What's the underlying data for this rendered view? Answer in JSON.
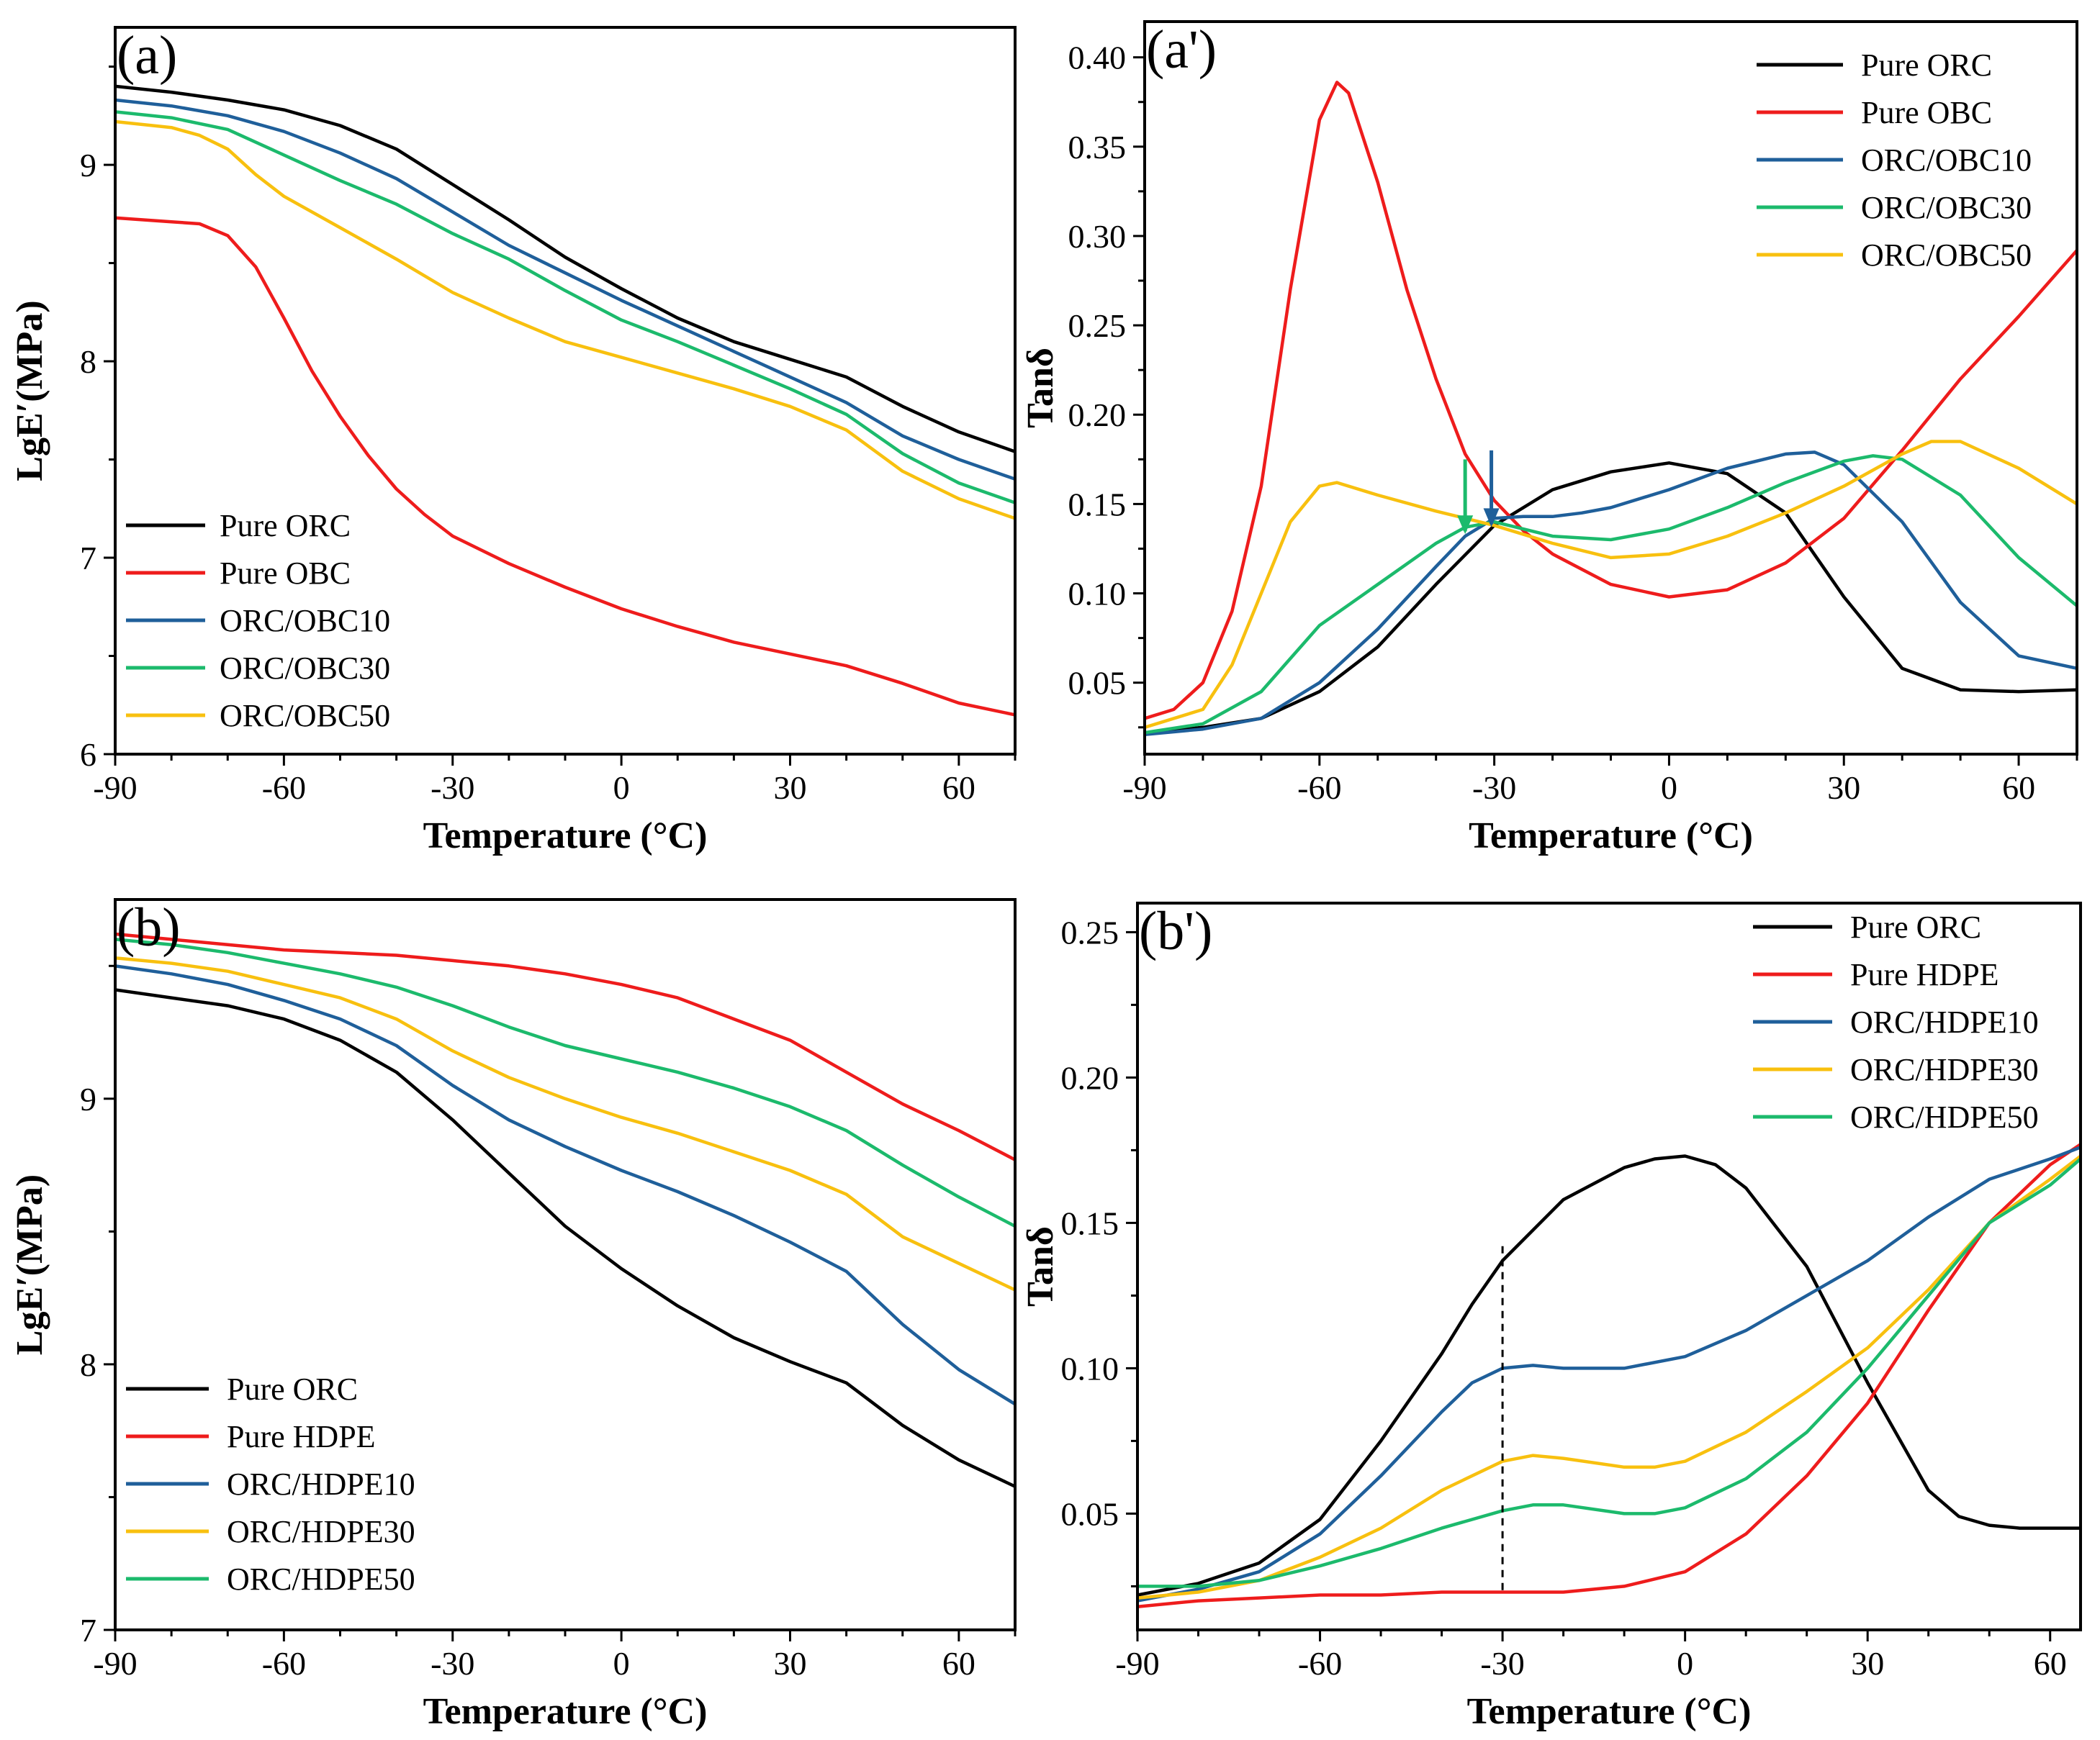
{
  "figure": {
    "colors": {
      "black": "#000000",
      "red": "#ee1c1c",
      "blue": "#1f5f9a",
      "green": "#1cba6c",
      "yellow": "#f8c00f"
    }
  },
  "chart_data": [
    {
      "type": "line",
      "panel": "(a)",
      "xlabel": "Temperature (°C)",
      "ylabel": "LgE′(MPa)",
      "xlim": [
        -90,
        70
      ],
      "ylim": [
        6,
        9.7
      ],
      "xticks": [
        -90,
        -60,
        -30,
        0,
        30,
        60
      ],
      "yticks": [
        6,
        7,
        8,
        9
      ],
      "legend_position": "bottom-left",
      "series": [
        {
          "name": "Pure ORC",
          "color": "#000000",
          "x": [
            -90,
            -80,
            -70,
            -60,
            -50,
            -40,
            -30,
            -20,
            -10,
            0,
            10,
            20,
            30,
            40,
            50,
            60,
            70
          ],
          "y": [
            9.4,
            9.37,
            9.33,
            9.28,
            9.2,
            9.08,
            8.9,
            8.72,
            8.53,
            8.37,
            8.22,
            8.1,
            8.01,
            7.92,
            7.77,
            7.64,
            7.54
          ]
        },
        {
          "name": "Pure OBC",
          "color": "#ee1c1c",
          "x": [
            -90,
            -80,
            -75,
            -70,
            -65,
            -60,
            -55,
            -50,
            -45,
            -40,
            -35,
            -30,
            -20,
            -10,
            0,
            10,
            20,
            30,
            40,
            50,
            60,
            70
          ],
          "y": [
            8.73,
            8.71,
            8.7,
            8.64,
            8.48,
            8.22,
            7.95,
            7.72,
            7.52,
            7.35,
            7.22,
            7.11,
            6.97,
            6.85,
            6.74,
            6.65,
            6.57,
            6.51,
            6.45,
            6.36,
            6.26,
            6.2
          ]
        },
        {
          "name": "ORC/OBC10",
          "color": "#1f5f9a",
          "x": [
            -90,
            -80,
            -70,
            -60,
            -50,
            -40,
            -30,
            -20,
            -10,
            0,
            10,
            20,
            30,
            40,
            50,
            60,
            70
          ],
          "y": [
            9.33,
            9.3,
            9.25,
            9.17,
            9.06,
            8.93,
            8.76,
            8.59,
            8.45,
            8.31,
            8.18,
            8.05,
            7.92,
            7.79,
            7.62,
            7.5,
            7.4
          ]
        },
        {
          "name": "ORC/OBC30",
          "color": "#1cba6c",
          "x": [
            -90,
            -80,
            -70,
            -60,
            -50,
            -40,
            -30,
            -20,
            -10,
            0,
            10,
            20,
            30,
            40,
            50,
            60,
            70
          ],
          "y": [
            9.27,
            9.24,
            9.18,
            9.05,
            8.92,
            8.8,
            8.65,
            8.52,
            8.36,
            8.21,
            8.1,
            7.98,
            7.86,
            7.73,
            7.53,
            7.38,
            7.28
          ]
        },
        {
          "name": "ORC/OBC50",
          "color": "#f8c00f",
          "x": [
            -90,
            -80,
            -75,
            -70,
            -65,
            -60,
            -50,
            -40,
            -30,
            -20,
            -10,
            0,
            10,
            20,
            30,
            40,
            50,
            60,
            70
          ],
          "y": [
            9.22,
            9.19,
            9.15,
            9.08,
            8.95,
            8.84,
            8.68,
            8.52,
            8.35,
            8.22,
            8.1,
            8.02,
            7.94,
            7.86,
            7.77,
            7.65,
            7.44,
            7.3,
            7.2
          ]
        }
      ]
    },
    {
      "type": "line",
      "panel": "(a')",
      "xlabel": "Temperature (°C)",
      "ylabel": "Tanδ",
      "xlim": [
        -90,
        70
      ],
      "ylim": [
        0.01,
        0.42
      ],
      "xticks": [
        -90,
        -60,
        -30,
        0,
        30,
        60
      ],
      "yticks": [
        0.05,
        0.1,
        0.15,
        0.2,
        0.25,
        0.3,
        0.35,
        0.4
      ],
      "ytick_labels": [
        "0.05",
        "0.10",
        "0.15",
        "0.20",
        "0.25",
        "0.30",
        "0.35",
        "0.40"
      ],
      "legend_position": "top-right",
      "annotations": [
        {
          "type": "arrow",
          "x": -35,
          "y_from": 0.175,
          "y_to": 0.142,
          "color": "#1cba6c"
        },
        {
          "type": "arrow",
          "x": -30.5,
          "y_from": 0.18,
          "y_to": 0.146,
          "color": "#1f5f9a"
        }
      ],
      "series": [
        {
          "name": "Pure ORC",
          "color": "#000000",
          "x": [
            -90,
            -80,
            -70,
            -60,
            -50,
            -40,
            -30,
            -20,
            -10,
            0,
            10,
            20,
            30,
            40,
            50,
            60,
            70
          ],
          "y": [
            0.022,
            0.025,
            0.03,
            0.045,
            0.07,
            0.105,
            0.138,
            0.158,
            0.168,
            0.173,
            0.167,
            0.145,
            0.098,
            0.058,
            0.046,
            0.045,
            0.046
          ]
        },
        {
          "name": "Pure OBC",
          "color": "#ee1c1c",
          "x": [
            -90,
            -85,
            -80,
            -75,
            -70,
            -65,
            -60,
            -57,
            -55,
            -50,
            -45,
            -40,
            -35,
            -30,
            -25,
            -20,
            -10,
            0,
            10,
            20,
            30,
            40,
            50,
            60,
            70
          ],
          "y": [
            0.03,
            0.035,
            0.05,
            0.09,
            0.16,
            0.27,
            0.365,
            0.386,
            0.38,
            0.33,
            0.27,
            0.22,
            0.178,
            0.152,
            0.135,
            0.122,
            0.105,
            0.098,
            0.102,
            0.117,
            0.142,
            0.18,
            0.22,
            0.255,
            0.292
          ]
        },
        {
          "name": "ORC/OBC10",
          "color": "#1f5f9a",
          "x": [
            -90,
            -80,
            -70,
            -60,
            -50,
            -40,
            -35,
            -30,
            -25,
            -20,
            -15,
            -10,
            0,
            10,
            20,
            25,
            30,
            40,
            50,
            60,
            70
          ],
          "y": [
            0.021,
            0.024,
            0.03,
            0.05,
            0.08,
            0.115,
            0.132,
            0.142,
            0.143,
            0.143,
            0.145,
            0.148,
            0.158,
            0.17,
            0.178,
            0.179,
            0.172,
            0.14,
            0.095,
            0.065,
            0.058
          ]
        },
        {
          "name": "ORC/OBC30",
          "color": "#1cba6c",
          "x": [
            -90,
            -80,
            -70,
            -60,
            -50,
            -40,
            -35,
            -30,
            -20,
            -10,
            0,
            10,
            20,
            30,
            35,
            40,
            50,
            60,
            70
          ],
          "y": [
            0.022,
            0.027,
            0.045,
            0.082,
            0.105,
            0.128,
            0.137,
            0.14,
            0.132,
            0.13,
            0.136,
            0.148,
            0.162,
            0.174,
            0.177,
            0.175,
            0.155,
            0.12,
            0.093
          ]
        },
        {
          "name": "ORC/OBC50",
          "color": "#f8c00f",
          "x": [
            -90,
            -80,
            -75,
            -70,
            -65,
            -60,
            -57,
            -50,
            -40,
            -30,
            -20,
            -10,
            0,
            10,
            20,
            30,
            40,
            45,
            50,
            60,
            70
          ],
          "y": [
            0.025,
            0.035,
            0.06,
            0.1,
            0.14,
            0.16,
            0.162,
            0.155,
            0.146,
            0.138,
            0.128,
            0.12,
            0.122,
            0.132,
            0.145,
            0.16,
            0.178,
            0.185,
            0.185,
            0.17,
            0.15
          ]
        }
      ]
    },
    {
      "type": "line",
      "panel": "(b)",
      "xlabel": "Temperature (°C)",
      "ylabel": "LgE′(MPa)",
      "xlim": [
        -90,
        70
      ],
      "ylim": [
        7,
        9.75
      ],
      "xticks": [
        -90,
        -60,
        -30,
        0,
        30,
        60
      ],
      "yticks": [
        7,
        8,
        9
      ],
      "legend_position": "bottom-left",
      "series": [
        {
          "name": "Pure ORC",
          "color": "#000000",
          "x": [
            -90,
            -80,
            -70,
            -60,
            -50,
            -40,
            -30,
            -20,
            -10,
            0,
            10,
            20,
            30,
            40,
            50,
            60,
            70
          ],
          "y": [
            9.41,
            9.38,
            9.35,
            9.3,
            9.22,
            9.1,
            8.92,
            8.72,
            8.52,
            8.36,
            8.22,
            8.1,
            8.01,
            7.93,
            7.77,
            7.64,
            7.54
          ]
        },
        {
          "name": "Pure HDPE",
          "color": "#ee1c1c",
          "x": [
            -90,
            -80,
            -70,
            -60,
            -50,
            -40,
            -30,
            -20,
            -10,
            0,
            10,
            20,
            30,
            40,
            50,
            60,
            70
          ],
          "y": [
            9.62,
            9.6,
            9.58,
            9.56,
            9.55,
            9.54,
            9.52,
            9.5,
            9.47,
            9.43,
            9.38,
            9.3,
            9.22,
            9.1,
            8.98,
            8.88,
            8.77
          ]
        },
        {
          "name": "ORC/HDPE10",
          "color": "#1f5f9a",
          "x": [
            -90,
            -80,
            -70,
            -60,
            -50,
            -40,
            -30,
            -20,
            -10,
            0,
            10,
            20,
            30,
            40,
            50,
            60,
            70
          ],
          "y": [
            9.5,
            9.47,
            9.43,
            9.37,
            9.3,
            9.2,
            9.05,
            8.92,
            8.82,
            8.73,
            8.65,
            8.56,
            8.46,
            8.35,
            8.15,
            7.98,
            7.85
          ]
        },
        {
          "name": "ORC/HDPE30",
          "color": "#f8c00f",
          "x": [
            -90,
            -80,
            -70,
            -60,
            -50,
            -40,
            -30,
            -20,
            -10,
            0,
            10,
            20,
            30,
            40,
            50,
            60,
            70
          ],
          "y": [
            9.53,
            9.51,
            9.48,
            9.43,
            9.38,
            9.3,
            9.18,
            9.08,
            9.0,
            8.93,
            8.87,
            8.8,
            8.73,
            8.64,
            8.48,
            8.38,
            8.28
          ]
        },
        {
          "name": "ORC/HDPE50",
          "color": "#1cba6c",
          "x": [
            -90,
            -80,
            -70,
            -60,
            -50,
            -40,
            -30,
            -20,
            -10,
            0,
            10,
            20,
            30,
            40,
            50,
            60,
            70
          ],
          "y": [
            9.6,
            9.58,
            9.55,
            9.51,
            9.47,
            9.42,
            9.35,
            9.27,
            9.2,
            9.15,
            9.1,
            9.04,
            8.97,
            8.88,
            8.75,
            8.63,
            8.52
          ]
        }
      ]
    },
    {
      "type": "line",
      "panel": "(b')",
      "xlabel": "Temperature (°C)",
      "ylabel": "Tanδ",
      "xlim": [
        -90,
        65
      ],
      "ylim": [
        0.01,
        0.26
      ],
      "xticks": [
        -90,
        -60,
        -30,
        0,
        30,
        60
      ],
      "yticks": [
        0.05,
        0.1,
        0.15,
        0.2,
        0.25
      ],
      "ytick_labels": [
        "0.05",
        "0.10",
        "0.15",
        "0.20",
        "0.25"
      ],
      "legend_position": "top-right",
      "annotations": [
        {
          "type": "vline-dashed",
          "x": -30,
          "y_from": 0.022,
          "y_to": 0.142,
          "color": "#000000"
        }
      ],
      "series": [
        {
          "name": "Pure ORC",
          "color": "#000000",
          "x": [
            -90,
            -80,
            -70,
            -60,
            -50,
            -40,
            -35,
            -30,
            -20,
            -10,
            -5,
            0,
            5,
            10,
            20,
            30,
            40,
            45,
            50,
            55,
            60,
            65
          ],
          "y": [
            0.022,
            0.026,
            0.033,
            0.048,
            0.075,
            0.105,
            0.122,
            0.137,
            0.158,
            0.169,
            0.172,
            0.173,
            0.17,
            0.162,
            0.135,
            0.095,
            0.058,
            0.049,
            0.046,
            0.045,
            0.045,
            0.045
          ]
        },
        {
          "name": "Pure HDPE",
          "color": "#ee1c1c",
          "x": [
            -90,
            -80,
            -70,
            -60,
            -50,
            -40,
            -30,
            -20,
            -10,
            0,
            10,
            20,
            30,
            40,
            50,
            60,
            65
          ],
          "y": [
            0.018,
            0.02,
            0.021,
            0.022,
            0.022,
            0.023,
            0.023,
            0.023,
            0.025,
            0.03,
            0.043,
            0.063,
            0.088,
            0.12,
            0.15,
            0.17,
            0.177
          ]
        },
        {
          "name": "ORC/HDPE10",
          "color": "#1f5f9a",
          "x": [
            -90,
            -80,
            -70,
            -60,
            -50,
            -40,
            -35,
            -30,
            -25,
            -20,
            -10,
            0,
            10,
            20,
            30,
            40,
            50,
            60,
            65
          ],
          "y": [
            0.02,
            0.024,
            0.03,
            0.043,
            0.063,
            0.085,
            0.095,
            0.1,
            0.101,
            0.1,
            0.1,
            0.104,
            0.113,
            0.125,
            0.137,
            0.152,
            0.165,
            0.172,
            0.176
          ]
        },
        {
          "name": "ORC/HDPE30",
          "color": "#f8c00f",
          "x": [
            -90,
            -80,
            -70,
            -60,
            -50,
            -40,
            -30,
            -25,
            -20,
            -10,
            -5,
            0,
            10,
            20,
            30,
            40,
            50,
            60,
            65
          ],
          "y": [
            0.021,
            0.023,
            0.027,
            0.035,
            0.045,
            0.058,
            0.068,
            0.07,
            0.069,
            0.066,
            0.066,
            0.068,
            0.078,
            0.092,
            0.107,
            0.127,
            0.15,
            0.165,
            0.173
          ]
        },
        {
          "name": "ORC/HDPE50",
          "color": "#1cba6c",
          "x": [
            -90,
            -80,
            -70,
            -60,
            -50,
            -40,
            -30,
            -25,
            -20,
            -10,
            -5,
            0,
            10,
            20,
            30,
            40,
            50,
            60,
            65
          ],
          "y": [
            0.025,
            0.025,
            0.027,
            0.032,
            0.038,
            0.045,
            0.051,
            0.053,
            0.053,
            0.05,
            0.05,
            0.052,
            0.062,
            0.078,
            0.1,
            0.125,
            0.15,
            0.163,
            0.172
          ]
        }
      ]
    }
  ]
}
